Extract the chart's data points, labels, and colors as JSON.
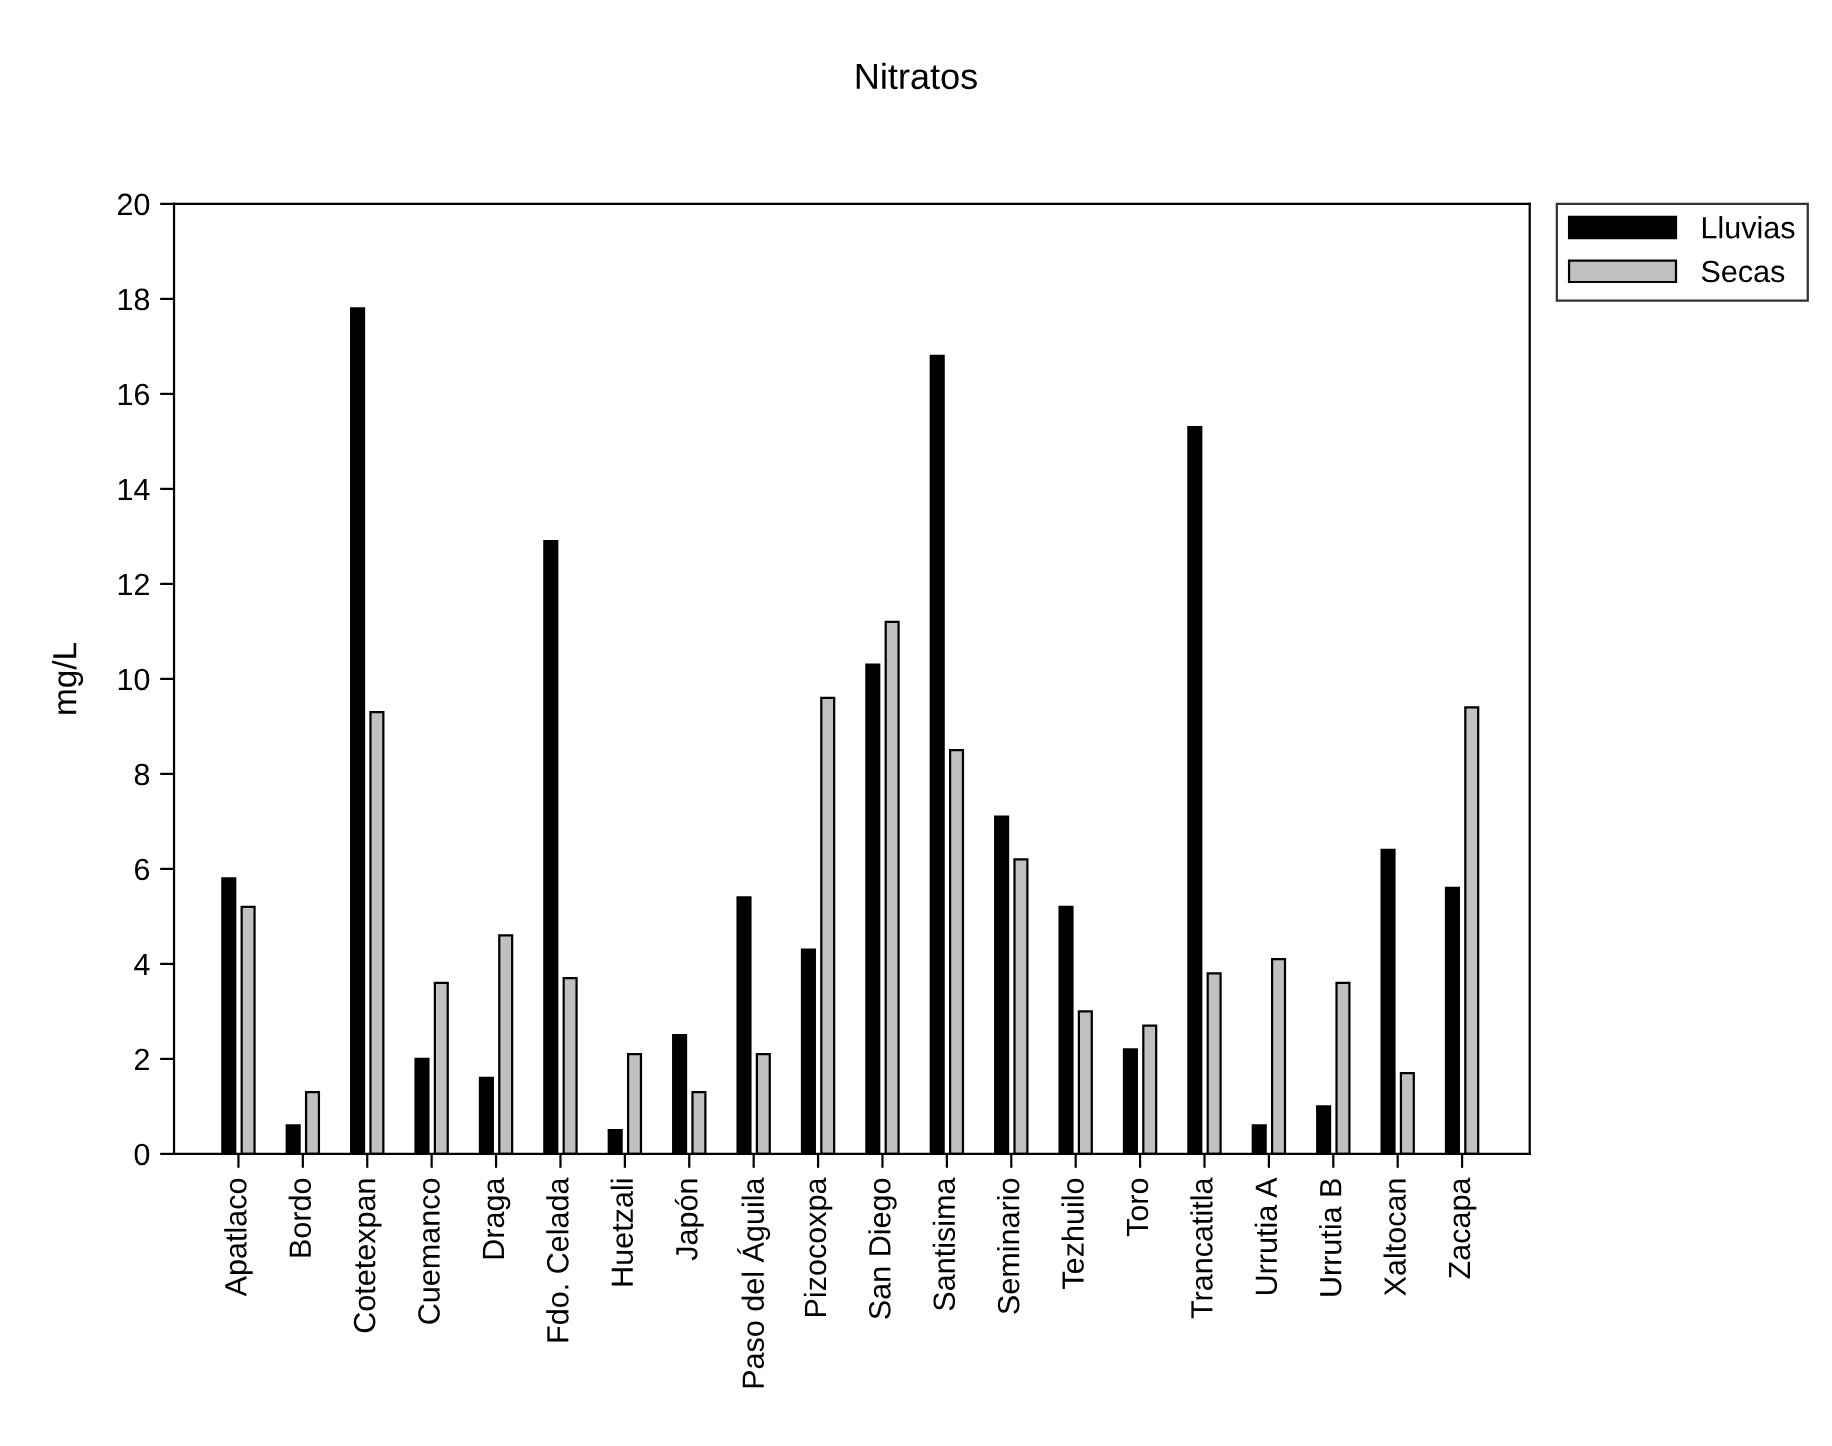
{
  "chart_data": {
    "type": "bar",
    "title": "Nitratos",
    "ylabel": "mg/L",
    "categories": [
      "Apatlaco",
      "Bordo",
      "Cotetexpan",
      "Cuemanco",
      "Draga",
      "Fdo. Celada",
      "Huetzali",
      "Japón",
      "Paso del Águila",
      "Pizocoxpa",
      "San Diego",
      "Santisima",
      "Seminario",
      "Tezhuilo",
      "Toro",
      "Trancatitla",
      "Urrutia A",
      "Urrutia B",
      "Xaltocan",
      "Zacapa"
    ],
    "series": [
      {
        "name": "Lluvias",
        "color": "#000000",
        "values": [
          5.8,
          0.6,
          17.8,
          2.0,
          1.6,
          12.9,
          0.5,
          2.5,
          5.4,
          4.3,
          10.3,
          16.8,
          7.1,
          5.2,
          2.2,
          15.3,
          0.6,
          1.0,
          6.4,
          5.6
        ]
      },
      {
        "name": "Secas",
        "color": "#c0c0c0",
        "values": [
          5.2,
          1.3,
          9.3,
          3.6,
          4.6,
          3.7,
          2.1,
          1.3,
          2.1,
          9.6,
          11.2,
          8.5,
          6.2,
          3.0,
          2.7,
          3.8,
          4.1,
          3.6,
          1.7,
          9.4
        ]
      }
    ],
    "ylim": [
      0,
      20
    ],
    "yticks": [
      0,
      2,
      4,
      6,
      8,
      10,
      12,
      14,
      16,
      18,
      20
    ],
    "grid": false,
    "legend": "top right"
  }
}
